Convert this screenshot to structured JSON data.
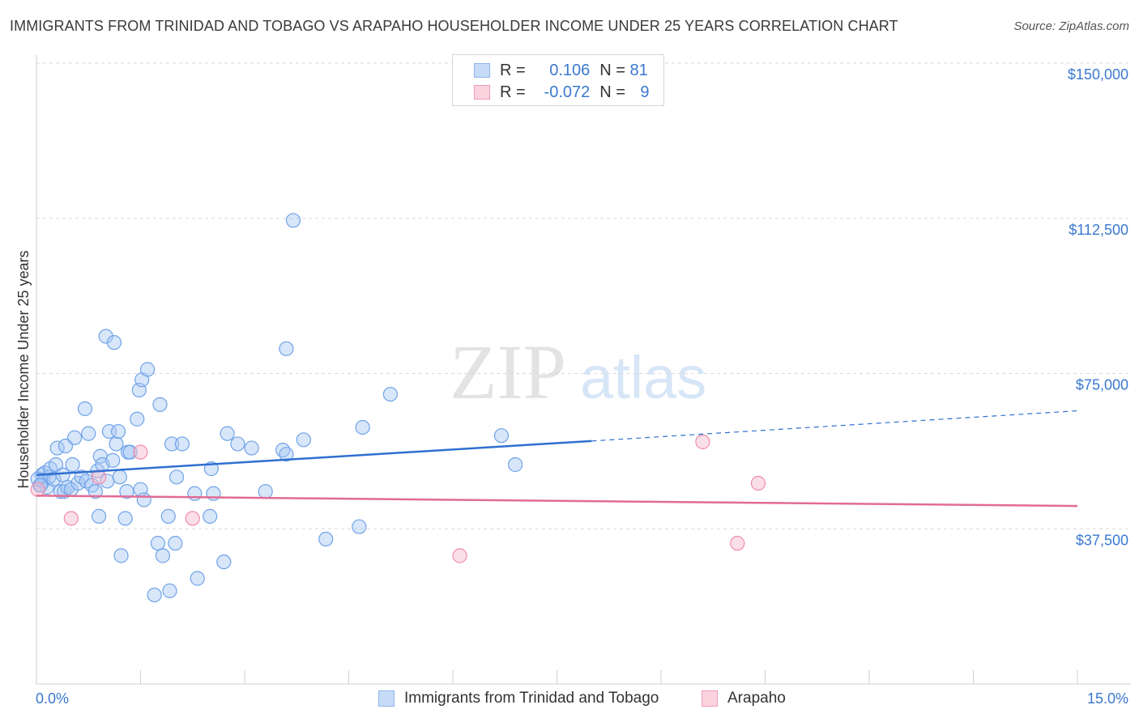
{
  "title": "IMMIGRANTS FROM TRINIDAD AND TOBAGO VS ARAPAHO HOUSEHOLDER INCOME UNDER 25 YEARS CORRELATION CHART",
  "source": "Source: ZipAtlas.com",
  "watermark": {
    "zip": "ZIP",
    "atlas": "atlas"
  },
  "legend_top": [
    {
      "r_label": "R = ",
      "r_value": "0.106",
      "n_label": "N = ",
      "n_value": "81",
      "color": "#a9c8f3"
    },
    {
      "r_label": "R = ",
      "r_value": "-0.072",
      "n_label": "N = ",
      "n_value": "9",
      "color": "#f6b9cb"
    }
  ],
  "legend_bottom": [
    {
      "label": "Immigrants from Trinidad and Tobago",
      "color": "#a9c8f3"
    },
    {
      "label": "Arapaho",
      "color": "#f6b9cb"
    }
  ],
  "chart_data": {
    "type": "scatter",
    "ylabel": "Householder Income Under 25 years",
    "xlim": [
      0,
      15
    ],
    "ylim": [
      0,
      150000
    ],
    "x_tick_labels": [
      "0.0%",
      "15.0%"
    ],
    "y_ticks": [
      37500,
      75000,
      112500,
      150000
    ],
    "y_tick_labels": [
      "$37,500",
      "$75,000",
      "$112,500",
      "$150,000"
    ],
    "grid": "horizontal dashed",
    "series": [
      {
        "name": "Immigrants from Trinidad and Tobago",
        "color": "#6fa3e8",
        "trend": {
          "x0": 0.0,
          "y0": 50500,
          "x1": 8.0,
          "y1": 58700,
          "x_dash_end": 15.0,
          "y_dash_end": 66000,
          "color": "#2f6fd0"
        },
        "points": [
          [
            0.05,
            48000
          ],
          [
            0.08,
            50500
          ],
          [
            0.1,
            49000
          ],
          [
            0.12,
            51000
          ],
          [
            0.15,
            47500
          ],
          [
            0.18,
            50000
          ],
          [
            0.2,
            52000
          ],
          [
            0.25,
            49500
          ],
          [
            0.28,
            53000
          ],
          [
            0.3,
            57000
          ],
          [
            0.35,
            46500
          ],
          [
            0.38,
            50500
          ],
          [
            0.4,
            46500
          ],
          [
            0.42,
            57500
          ],
          [
            0.45,
            47500
          ],
          [
            0.5,
            47000
          ],
          [
            0.52,
            53000
          ],
          [
            0.55,
            59500
          ],
          [
            0.6,
            48500
          ],
          [
            0.65,
            50000
          ],
          [
            0.7,
            66500
          ],
          [
            0.72,
            49000
          ],
          [
            0.75,
            60500
          ],
          [
            0.8,
            48000
          ],
          [
            0.85,
            46500
          ],
          [
            0.88,
            51500
          ],
          [
            0.9,
            40500
          ],
          [
            0.92,
            55000
          ],
          [
            0.95,
            53000
          ],
          [
            1.0,
            84000
          ],
          [
            1.02,
            49000
          ],
          [
            1.05,
            61000
          ],
          [
            1.1,
            54000
          ],
          [
            1.12,
            82500
          ],
          [
            1.15,
            58000
          ],
          [
            1.18,
            61000
          ],
          [
            1.2,
            50000
          ],
          [
            1.22,
            31000
          ],
          [
            1.28,
            40000
          ],
          [
            1.3,
            46500
          ],
          [
            1.32,
            56000
          ],
          [
            1.35,
            56000
          ],
          [
            1.45,
            64000
          ],
          [
            1.48,
            71000
          ],
          [
            1.5,
            47000
          ],
          [
            1.52,
            73500
          ],
          [
            1.55,
            44500
          ],
          [
            1.6,
            76000
          ],
          [
            1.7,
            21500
          ],
          [
            1.75,
            34000
          ],
          [
            1.78,
            67500
          ],
          [
            1.82,
            31000
          ],
          [
            1.9,
            40500
          ],
          [
            1.92,
            22500
          ],
          [
            1.95,
            58000
          ],
          [
            2.0,
            34000
          ],
          [
            2.02,
            50000
          ],
          [
            2.1,
            58000
          ],
          [
            2.28,
            46000
          ],
          [
            2.32,
            25500
          ],
          [
            2.5,
            40500
          ],
          [
            2.52,
            52000
          ],
          [
            2.55,
            46000
          ],
          [
            2.7,
            29500
          ],
          [
            2.75,
            60500
          ],
          [
            2.9,
            58000
          ],
          [
            3.1,
            57000
          ],
          [
            3.3,
            46500
          ],
          [
            3.55,
            56500
          ],
          [
            3.6,
            55500
          ],
          [
            3.6,
            81000
          ],
          [
            3.7,
            112000
          ],
          [
            3.85,
            59000
          ],
          [
            4.17,
            35000
          ],
          [
            4.65,
            38000
          ],
          [
            4.7,
            62000
          ],
          [
            5.1,
            70000
          ],
          [
            6.7,
            60000
          ],
          [
            6.9,
            53000
          ],
          [
            0.02,
            49500
          ],
          [
            0.06,
            48000
          ]
        ]
      },
      {
        "name": "Arapaho",
        "color": "#f08bab",
        "trend": {
          "x0": 0.0,
          "y0": 45500,
          "x1": 15.0,
          "y1": 43000,
          "color": "#e26b94"
        },
        "points": [
          [
            0.02,
            47000
          ],
          [
            0.5,
            40000
          ],
          [
            0.9,
            50000
          ],
          [
            1.5,
            56000
          ],
          [
            2.25,
            40000
          ],
          [
            6.1,
            31000
          ],
          [
            9.6,
            58500
          ],
          [
            10.1,
            34000
          ],
          [
            10.4,
            48500
          ]
        ]
      }
    ]
  }
}
